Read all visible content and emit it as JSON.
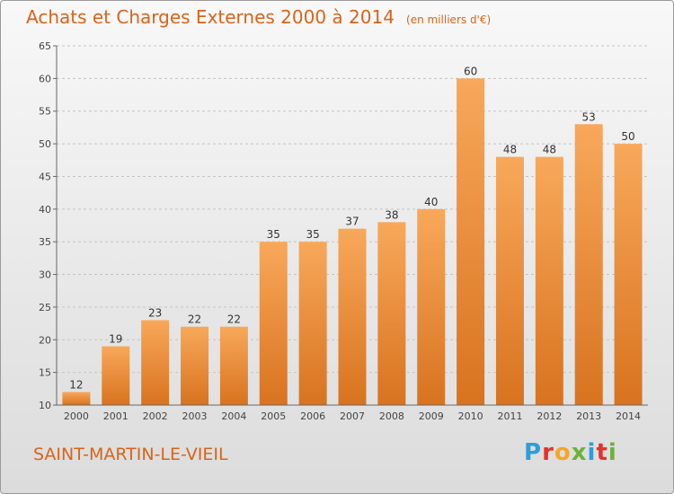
{
  "header": {
    "title": "Achats et Charges Externes 2000 à 2014",
    "unit_note": "(en milliers d'€)"
  },
  "footer": {
    "commune": "SAINT-MARTIN-LE-VIEIL",
    "brand_letters": [
      "P",
      "r",
      "o",
      "x",
      "i",
      "t",
      "i"
    ],
    "brand_colors": [
      "#2a9fd8",
      "#e8312a",
      "#f5a623",
      "#6ab23c",
      "#2a9fd8",
      "#e8312a",
      "#6ab23c"
    ]
  },
  "colors": {
    "bar_top": "#f8a85a",
    "bar_bottom": "#d8731f",
    "accent": "#d8641a"
  },
  "chart_data": {
    "type": "bar",
    "categories": [
      "2000",
      "2001",
      "2002",
      "2003",
      "2004",
      "2005",
      "2006",
      "2007",
      "2008",
      "2009",
      "2010",
      "2011",
      "2012",
      "2013",
      "2014"
    ],
    "values": [
      12,
      19,
      23,
      22,
      22,
      35,
      35,
      37,
      38,
      40,
      60,
      48,
      48,
      53,
      50
    ],
    "ylim": [
      10,
      65
    ],
    "yticks": [
      10,
      15,
      20,
      25,
      30,
      35,
      40,
      45,
      50,
      55,
      60,
      65
    ],
    "grid": true,
    "xlabel": "",
    "ylabel": ""
  }
}
